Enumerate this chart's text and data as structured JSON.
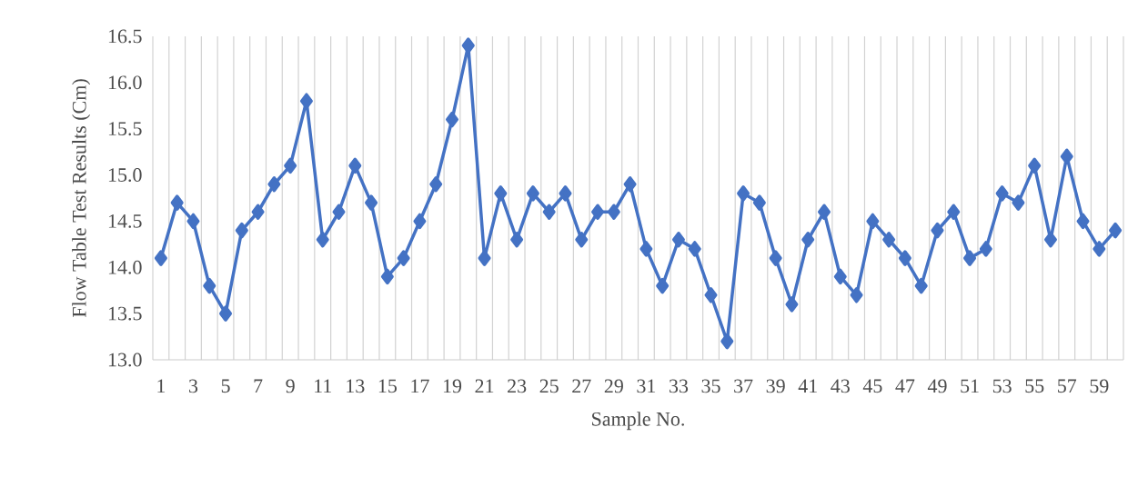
{
  "chart_data": {
    "type": "line",
    "xlabel": "Sample No.",
    "ylabel": "Flow Table Test Results  (Cm)",
    "categories": [
      "1",
      null,
      "3",
      null,
      "5",
      null,
      "7",
      null,
      "9",
      null,
      "11",
      null,
      "13",
      null,
      "15",
      null,
      "17",
      null,
      "19",
      null,
      "21",
      null,
      "23",
      null,
      "25",
      null,
      "27",
      null,
      "29",
      null,
      "31",
      null,
      "33",
      null,
      "35",
      null,
      "37",
      null,
      "39",
      null,
      "41",
      null,
      "43",
      null,
      "45",
      null,
      "47",
      null,
      "49",
      null,
      "51",
      null,
      "53",
      null,
      "55",
      null,
      "57",
      null,
      "59",
      null
    ],
    "series": [
      {
        "color": "#4472c4",
        "values": [
          14.1,
          14.7,
          14.5,
          13.8,
          13.5,
          14.4,
          14.6,
          14.9,
          15.1,
          15.8,
          14.3,
          14.6,
          15.1,
          14.7,
          13.9,
          14.1,
          14.5,
          14.9,
          15.6,
          16.4,
          14.1,
          14.8,
          14.3,
          14.8,
          14.6,
          14.8,
          14.3,
          14.6,
          14.6,
          14.9,
          14.2,
          13.8,
          14.3,
          14.2,
          13.7,
          13.2,
          14.8,
          14.7,
          14.1,
          13.6,
          14.3,
          14.6,
          13.9,
          13.7,
          14.5,
          14.3,
          14.1,
          13.8,
          14.4,
          14.6,
          14.1,
          14.2,
          14.8,
          14.7,
          15.1,
          14.3,
          15.2,
          14.5,
          14.2,
          14.4
        ]
      }
    ],
    "ylim": [
      13.0,
      16.5
    ],
    "yticks": [
      {
        "value": 13.0,
        "label": "13.0"
      },
      {
        "value": 13.5,
        "label": "13.5"
      },
      {
        "value": 14.0,
        "label": "14.0"
      },
      {
        "value": 14.5,
        "label": "14.5"
      },
      {
        "value": 15.0,
        "label": "15.0"
      },
      {
        "value": 15.5,
        "label": "15.5"
      },
      {
        "value": 16.0,
        "label": "16.0"
      },
      {
        "value": 16.5,
        "label": "16.5"
      }
    ],
    "grid": "x",
    "marker": "diamond",
    "line_style": "solid"
  }
}
